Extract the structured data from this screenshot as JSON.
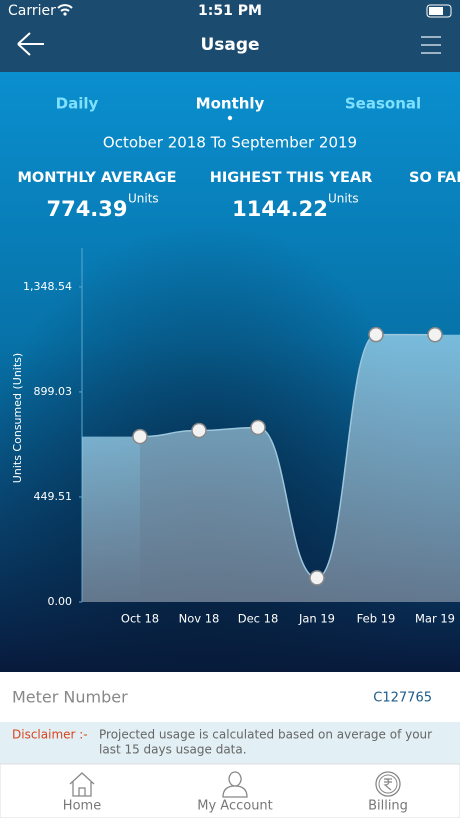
{
  "status": {
    "carrier": "Carrier",
    "time": "1:51 PM"
  },
  "header": {
    "title": "Usage"
  },
  "tabs": [
    "Daily",
    "Monthly",
    "Seasonal"
  ],
  "range": "October 2018 To September 2019",
  "stats": [
    {
      "label": "MONTHLY AVERAGE",
      "value": "774.39",
      "unit": "Units"
    },
    {
      "label": "HIGHEST THIS YEAR",
      "value": "1144.22",
      "unit": "Units"
    },
    {
      "label": "SO FAR"
    }
  ],
  "chart_data": {
    "type": "area",
    "y_label": "Units Consumed (Units)",
    "categories": [
      "Oct 18",
      "Nov 18",
      "Dec 18",
      "Jan 19",
      "Feb 19",
      "Mar 19"
    ],
    "values": [
      708,
      734,
      747,
      103,
      1144.22,
      1144
    ],
    "ylim": [
      0,
      1515
    ],
    "yticks": [
      {
        "value": 0,
        "label": "0.00"
      },
      449.51,
      899.03,
      {
        "value": 1348.54,
        "label": "1,348.54"
      }
    ]
  },
  "meter": {
    "label": "Meter Number",
    "number": "C127765"
  },
  "disclaimer": {
    "label": "Disclaimer :-",
    "lines": [
      "Projected usage is calculated based on average of your",
      "last 15 days usage data."
    ]
  },
  "nav": [
    "Home",
    "My Account",
    "Billing"
  ]
}
